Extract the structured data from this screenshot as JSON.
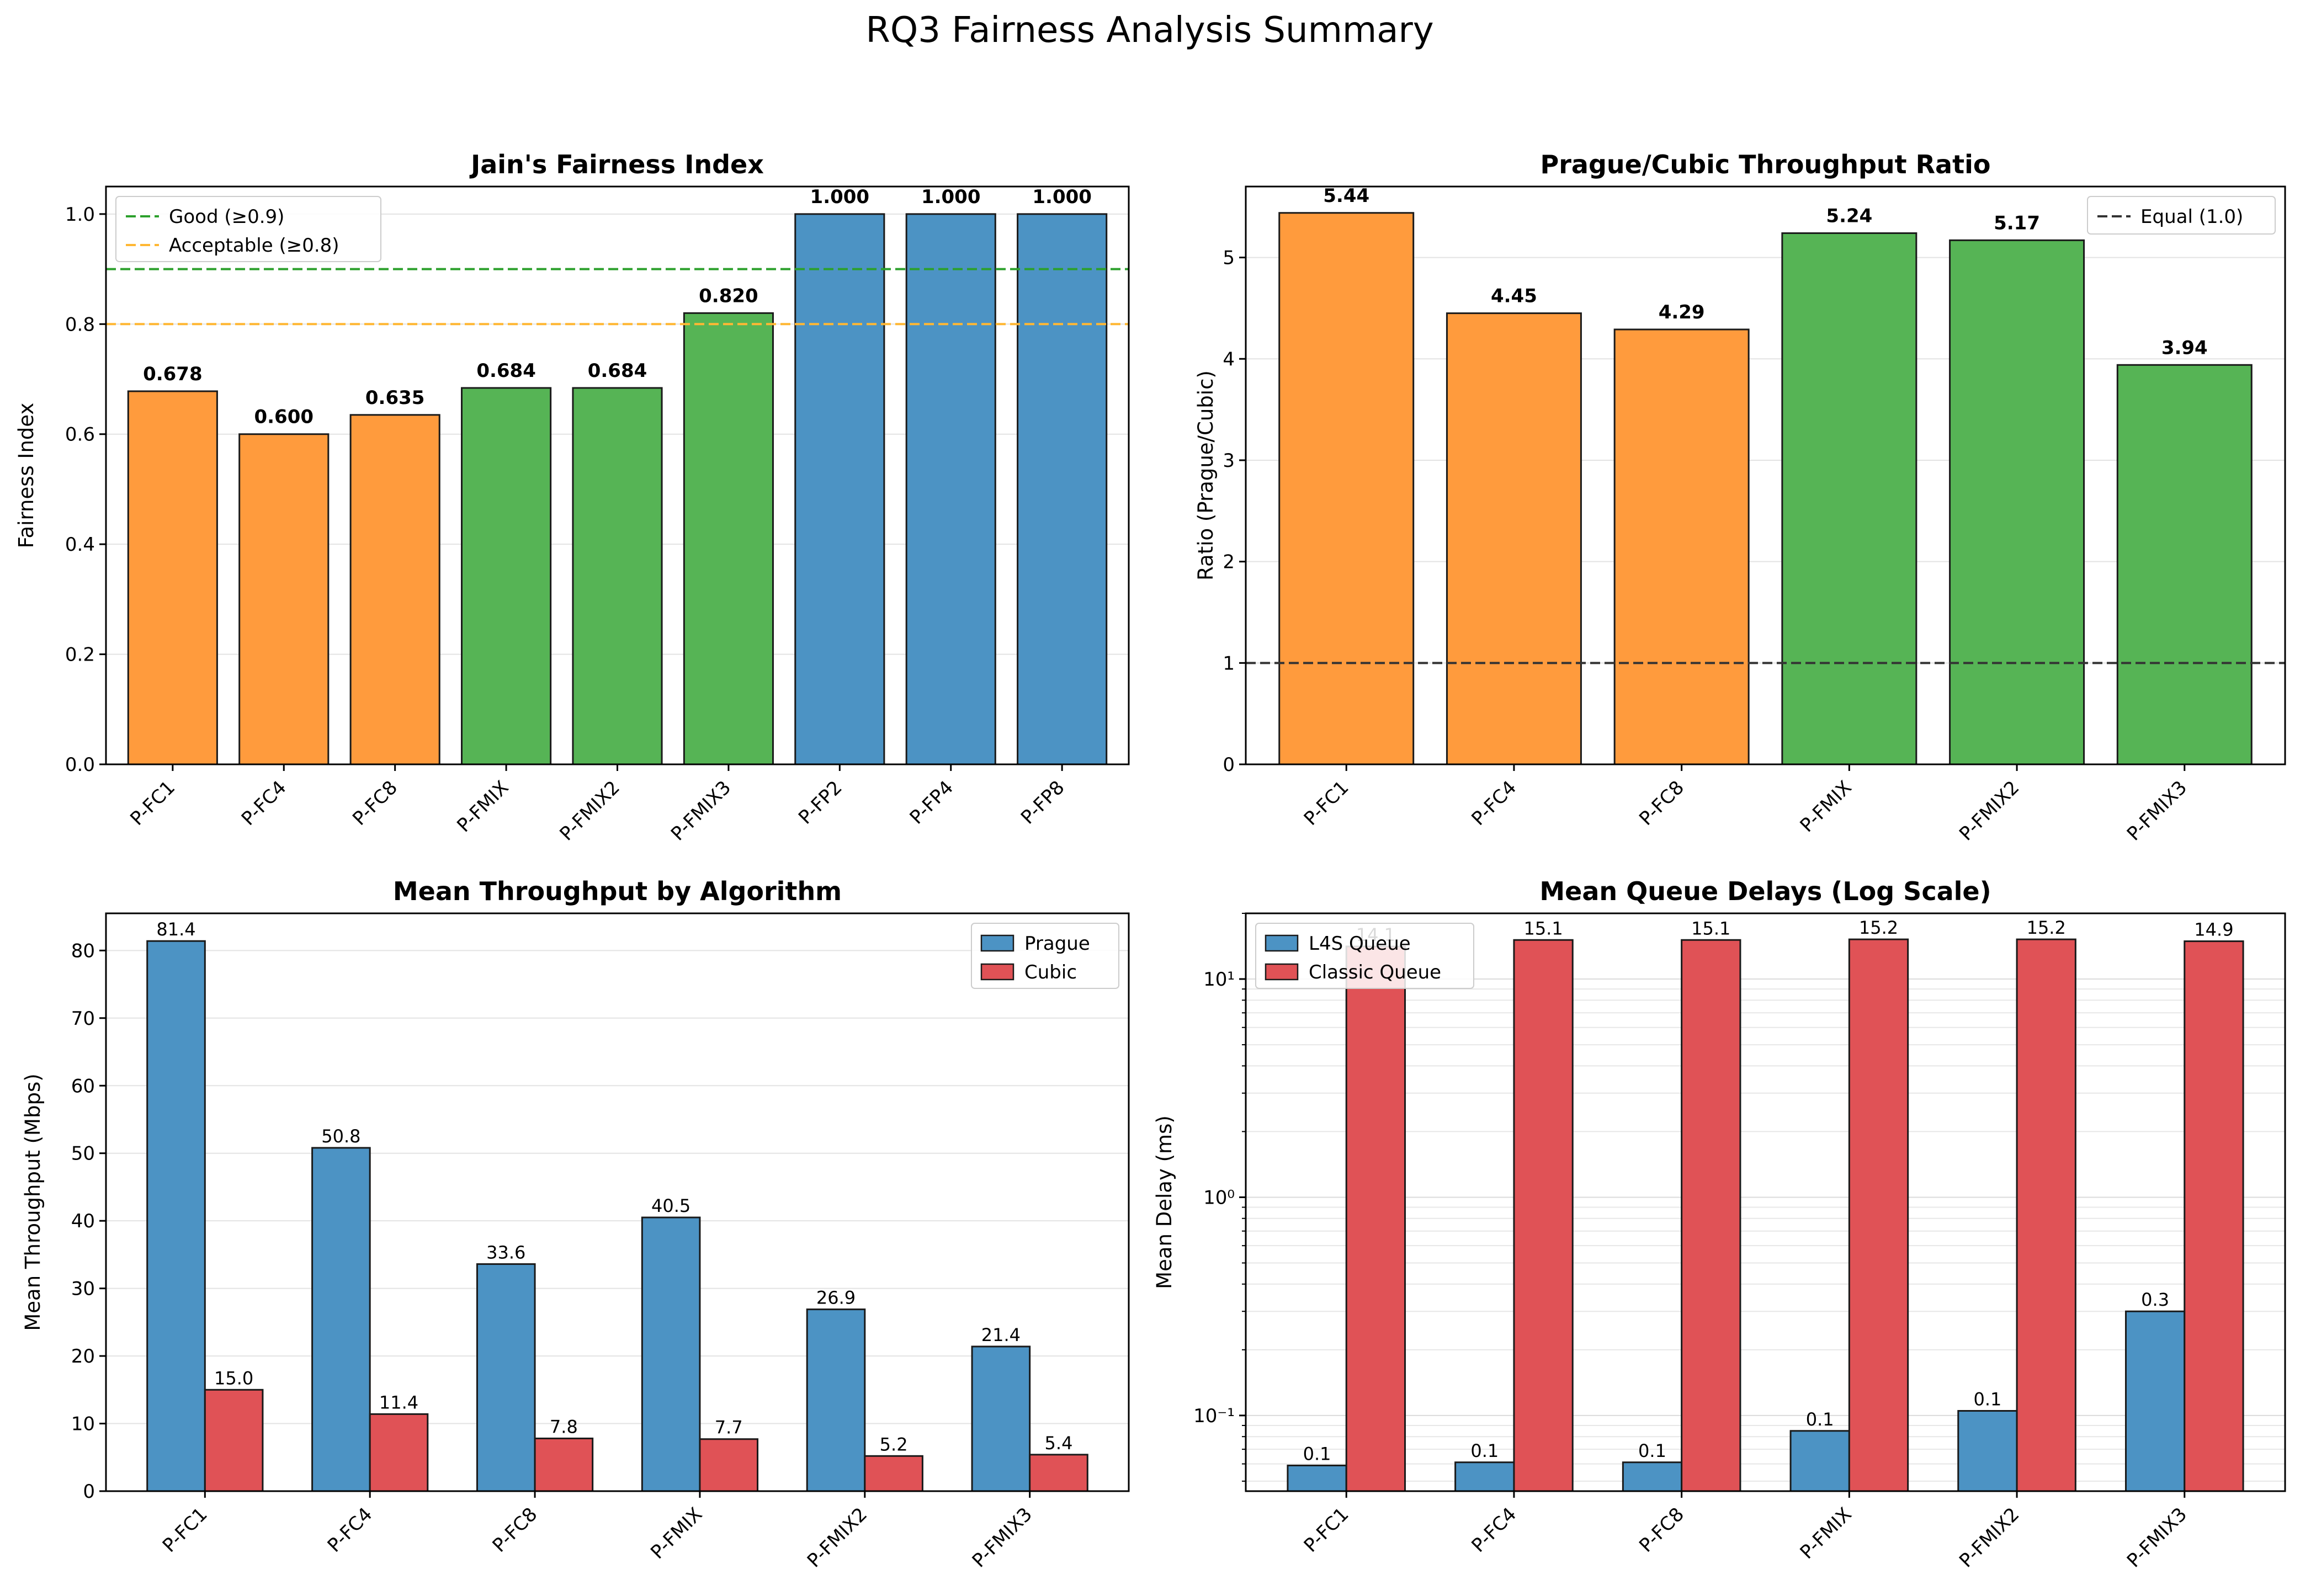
{
  "figure": {
    "title": "RQ3 Fairness Analysis Summary"
  },
  "colors": {
    "orange": "#ff9b3d",
    "green": "#56b455",
    "blue": "#4c93c4",
    "red": "#e05256",
    "good_line": "#2ca02c",
    "acceptable_line": "#ffb733",
    "equal_line": "#333333"
  },
  "chart_data": [
    {
      "id": "fairness",
      "type": "bar",
      "title": "Jain's Fairness Index",
      "xlabel": "",
      "ylabel": "Fairness Index",
      "categories": [
        "P-FC1",
        "P-FC4",
        "P-FC8",
        "P-FMIX",
        "P-FMIX2",
        "P-FMIX3",
        "P-FP2",
        "P-FP4",
        "P-FP8"
      ],
      "values": [
        0.678,
        0.6,
        0.635,
        0.684,
        0.684,
        0.82,
        1.0,
        1.0,
        1.0
      ],
      "value_labels": [
        "0.678",
        "0.600",
        "0.635",
        "0.684",
        "0.684",
        "0.820",
        "1.000",
        "1.000",
        "1.000"
      ],
      "bar_colors": [
        "orange",
        "orange",
        "orange",
        "green",
        "green",
        "green",
        "blue",
        "blue",
        "blue"
      ],
      "ylim": [
        0,
        1.05
      ],
      "yticks": [
        0.0,
        0.2,
        0.4,
        0.6,
        0.8,
        1.0
      ],
      "ytick_labels": [
        "0.0",
        "0.2",
        "0.4",
        "0.6",
        "0.8",
        "1.0"
      ],
      "reference_lines": [
        {
          "value": 0.9,
          "label": "Good (≥0.9)",
          "color": "good_line"
        },
        {
          "value": 0.8,
          "label": "Acceptable (≥0.8)",
          "color": "acceptable_line"
        }
      ],
      "legend": "top-left",
      "grid": "y"
    },
    {
      "id": "ratio",
      "type": "bar",
      "title": "Prague/Cubic Throughput Ratio",
      "xlabel": "",
      "ylabel": "Ratio (Prague/Cubic)",
      "categories": [
        "P-FC1",
        "P-FC4",
        "P-FC8",
        "P-FMIX",
        "P-FMIX2",
        "P-FMIX3"
      ],
      "values": [
        5.44,
        4.45,
        4.29,
        5.24,
        5.17,
        3.94
      ],
      "value_labels": [
        "5.44",
        "4.45",
        "4.29",
        "5.24",
        "5.17",
        "3.94"
      ],
      "bar_colors": [
        "orange",
        "orange",
        "orange",
        "green",
        "green",
        "green"
      ],
      "ylim": [
        0,
        5.7
      ],
      "yticks": [
        0,
        1,
        2,
        3,
        4,
        5
      ],
      "ytick_labels": [
        "0",
        "1",
        "2",
        "3",
        "4",
        "5"
      ],
      "reference_lines": [
        {
          "value": 1.0,
          "label": "Equal (1.0)",
          "color": "equal_line"
        }
      ],
      "legend": "top-right",
      "grid": "y"
    },
    {
      "id": "throughput",
      "type": "bar",
      "title": "Mean Throughput by Algorithm",
      "xlabel": "",
      "ylabel": "Mean Throughput (Mbps)",
      "categories": [
        "P-FC1",
        "P-FC4",
        "P-FC8",
        "P-FMIX",
        "P-FMIX2",
        "P-FMIX3"
      ],
      "series": [
        {
          "name": "Prague",
          "color": "blue",
          "values": [
            81.4,
            50.8,
            33.6,
            40.5,
            26.9,
            21.4
          ],
          "value_labels": [
            "81.4",
            "50.8",
            "33.6",
            "40.5",
            "26.9",
            "21.4"
          ]
        },
        {
          "name": "Cubic",
          "color": "red",
          "values": [
            15.0,
            11.4,
            7.8,
            7.7,
            5.2,
            5.4
          ],
          "value_labels": [
            "15.0",
            "11.4",
            "7.8",
            "7.7",
            "5.2",
            "5.4"
          ]
        }
      ],
      "ylim": [
        0,
        85.5
      ],
      "yticks": [
        0,
        10,
        20,
        30,
        40,
        50,
        60,
        70,
        80
      ],
      "ytick_labels": [
        "0",
        "10",
        "20",
        "30",
        "40",
        "50",
        "60",
        "70",
        "80"
      ],
      "legend": "top-right",
      "grid": "y"
    },
    {
      "id": "delays",
      "type": "bar",
      "title": "Mean Queue Delays (Log Scale)",
      "xlabel": "",
      "ylabel": "Mean Delay (ms)",
      "yscale": "log",
      "categories": [
        "P-FC1",
        "P-FC4",
        "P-FC8",
        "P-FMIX",
        "P-FMIX2",
        "P-FMIX3"
      ],
      "series": [
        {
          "name": "L4S Queue",
          "color": "blue",
          "values": [
            0.059,
            0.061,
            0.061,
            0.085,
            0.105,
            0.3
          ],
          "value_labels": [
            "0.1",
            "0.1",
            "0.1",
            "0.1",
            "0.1",
            "0.3"
          ]
        },
        {
          "name": "Classic Queue",
          "color": "red",
          "values": [
            14.1,
            15.1,
            15.1,
            15.2,
            15.2,
            14.9
          ],
          "value_labels": [
            "14.1",
            "15.1",
            "15.1",
            "15.2",
            "15.2",
            "14.9"
          ]
        }
      ],
      "ylim": [
        0.045,
        20
      ],
      "yticks": [
        0.1,
        1,
        10
      ],
      "ytick_labels": [
        "10⁻¹",
        "10⁰",
        "10¹"
      ],
      "legend": "top-left",
      "grid": "y"
    }
  ]
}
